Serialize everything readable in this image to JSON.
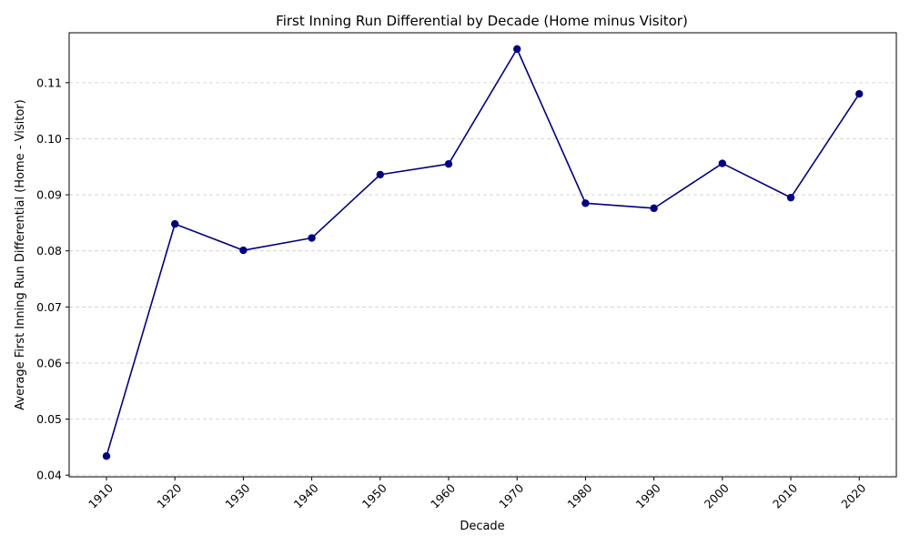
{
  "chart_data": {
    "type": "line",
    "title": "First Inning Run Differential by Decade (Home minus Visitor)",
    "xlabel": "Decade",
    "ylabel": "Average First Inning Run Differential (Home - Visitor)",
    "categories": [
      "1910",
      "1920",
      "1930",
      "1940",
      "1950",
      "1960",
      "1970",
      "1980",
      "1990",
      "2000",
      "2010",
      "2020"
    ],
    "series": [
      {
        "name": "First Inning Run Differential",
        "values": [
          0.0434,
          0.0848,
          0.0801,
          0.0823,
          0.0936,
          0.0955,
          0.116,
          0.0885,
          0.0876,
          0.0956,
          0.0895,
          0.108
        ],
        "color": "#000080"
      }
    ],
    "y_ticks": [
      "0.04",
      "0.05",
      "0.06",
      "0.07",
      "0.08",
      "0.09",
      "0.10",
      "0.11"
    ],
    "ylim": [
      0.0397,
      0.1189
    ],
    "grid": "y-dashed"
  }
}
